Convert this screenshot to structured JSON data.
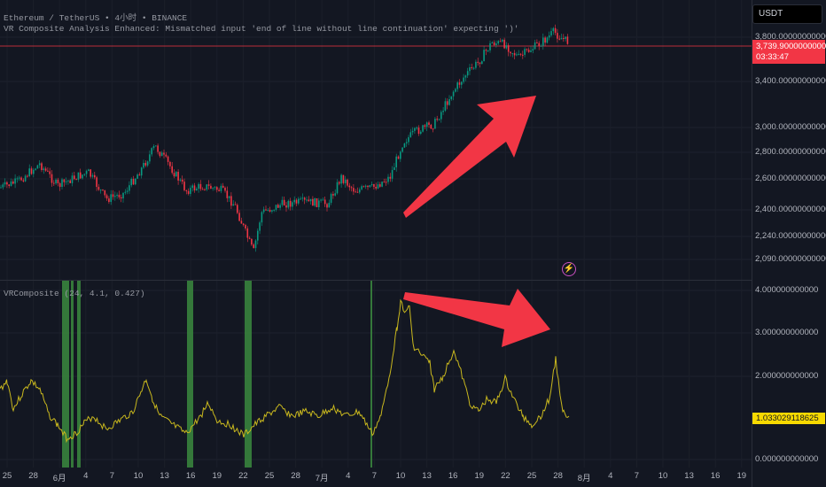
{
  "header": {
    "symbol_line": "Ethereum / TetherUS • 4小时 • BINANCE",
    "error_line": "VR Composite Analysis Enhanced: Mismatched input 'end of line without line continuation' expecting ')'"
  },
  "price_axis": {
    "currency": "USDT",
    "labels": [
      "3,800.000000000000",
      "3,400.000000000000",
      "3,000.000000000000",
      "2,800.000000000000",
      "2,600.000000000000",
      "2,400.000000000000",
      "2,240.000000000000",
      "2,090.000000000000"
    ],
    "current_price": "3,739.900000000000",
    "countdown": "03:33:47"
  },
  "indicator": {
    "legend": "VRComposite (24, 4.1, 0.427)",
    "axis_labels": [
      "4.000000000000",
      "3.000000000000",
      "2.000000000000",
      "0.000000000000"
    ],
    "current_value": "1.033029118625"
  },
  "time_axis": {
    "labels": [
      "25",
      "28",
      "6月",
      "4",
      "7",
      "10",
      "13",
      "16",
      "19",
      "22",
      "25",
      "28",
      "7月",
      "4",
      "7",
      "10",
      "13",
      "16",
      "19",
      "22",
      "25",
      "28",
      "8月",
      "4",
      "7",
      "10",
      "13",
      "16",
      "19"
    ]
  },
  "colors": {
    "background": "#131722",
    "up_candle": "#089981",
    "down_candle": "#f23645",
    "indicator_line": "#c9b81e",
    "signal_bar": "#3b8a3e",
    "annotation_arrow": "#f23645",
    "price_tag": "#f23645",
    "indicator_tag": "#f7d900"
  },
  "icons": {
    "alert": "lightning-bolt-icon"
  }
}
